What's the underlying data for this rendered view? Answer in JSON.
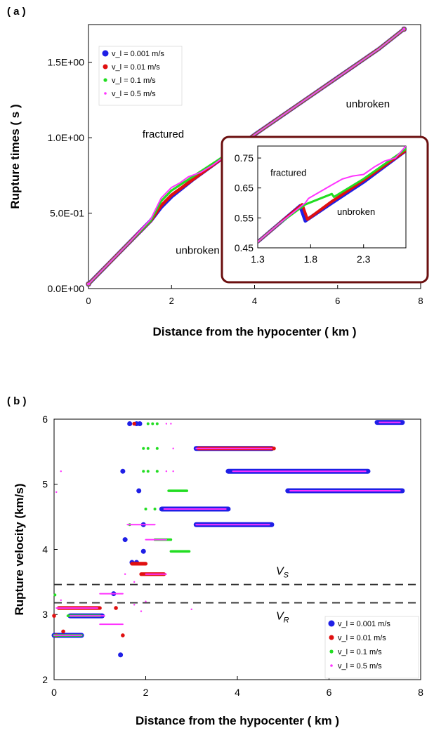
{
  "panels": {
    "a_label": "( a )",
    "b_label": "( b )"
  },
  "colors": {
    "v1": "#1f1fe6",
    "v2": "#e01010",
    "v3": "#22dd22",
    "v4": "#ff33ff",
    "inset_frame": "#6b0f0f",
    "dashes": "#333333"
  },
  "chart_data": [
    {
      "type": "scatter",
      "panel": "a",
      "xlabel": "Distance from the hypocenter ( km )",
      "ylabel": "Rupture times ( s )",
      "xlim": [
        0,
        8
      ],
      "ylim": [
        0,
        1.75
      ],
      "xticks": [
        0,
        2,
        4,
        6,
        8
      ],
      "xtick_labels": [
        "0",
        "2",
        "4",
        "6",
        "8"
      ],
      "yticks": [
        0,
        0.5,
        1.0,
        1.5
      ],
      "ytick_labels": [
        "0.0E+00",
        "5.0E-01",
        "1.0E+00",
        "1.5E+00"
      ],
      "legend_position": "top-left",
      "annotations": [
        {
          "text": "fractured",
          "x": 1.3,
          "y": 1.0
        },
        {
          "text": "unbroken",
          "x": 2.1,
          "y": 0.23
        },
        {
          "text": "unbroken",
          "x": 6.2,
          "y": 1.2
        }
      ],
      "series": [
        {
          "name": "v_l = 0.001 m/s",
          "color": "#1f1fe6",
          "x": [
            0,
            0.5,
            1.0,
            1.5,
            1.75,
            2.0,
            2.5,
            3.0,
            3.5,
            4.0,
            5.0,
            6.0,
            7.0,
            7.6
          ],
          "y": [
            0.03,
            0.17,
            0.31,
            0.45,
            0.54,
            0.61,
            0.72,
            0.82,
            0.92,
            1.02,
            1.21,
            1.4,
            1.59,
            1.72
          ]
        },
        {
          "name": "v_l = 0.01 m/s",
          "color": "#e01010",
          "x": [
            0,
            0.5,
            1.0,
            1.5,
            1.75,
            2.0,
            2.5,
            3.0,
            3.5,
            4.0,
            5.0,
            6.0,
            7.0,
            7.6
          ],
          "y": [
            0.03,
            0.17,
            0.31,
            0.45,
            0.55,
            0.62,
            0.72,
            0.82,
            0.92,
            1.02,
            1.21,
            1.4,
            1.59,
            1.72
          ]
        },
        {
          "name": "v_l = 0.1 m/s",
          "color": "#22dd22",
          "x": [
            0,
            0.5,
            1.0,
            1.5,
            1.75,
            2.0,
            2.5,
            3.0,
            3.5,
            4.0,
            5.0,
            6.0,
            7.0,
            7.6
          ],
          "y": [
            0.03,
            0.17,
            0.31,
            0.45,
            0.58,
            0.65,
            0.74,
            0.83,
            0.92,
            1.02,
            1.21,
            1.4,
            1.59,
            1.72
          ]
        },
        {
          "name": "v_l = 0.5 m/s",
          "color": "#ff33ff",
          "x": [
            0,
            0.5,
            1.0,
            1.5,
            1.75,
            2.0,
            2.2,
            2.4,
            2.7,
            3.0,
            3.5,
            4.0,
            5.0,
            6.0,
            7.0,
            7.6
          ],
          "y": [
            0.03,
            0.17,
            0.31,
            0.46,
            0.6,
            0.67,
            0.7,
            0.74,
            0.77,
            0.82,
            0.92,
            1.02,
            1.21,
            1.4,
            1.59,
            1.72
          ]
        }
      ]
    },
    {
      "type": "line",
      "panel": "a-inset",
      "xlim": [
        1.3,
        2.7
      ],
      "ylim": [
        0.45,
        0.79
      ],
      "xticks": [
        1.3,
        1.8,
        2.3
      ],
      "xtick_labels": [
        "1.3",
        "1.8",
        "2.3"
      ],
      "yticks": [
        0.45,
        0.55,
        0.65,
        0.75
      ],
      "ytick_labels": [
        "0.45",
        "0.55",
        "0.65",
        "0.75"
      ],
      "annotations": [
        {
          "text": "fractured",
          "x": 1.42,
          "y": 0.69
        },
        {
          "text": "unbroken",
          "x": 2.05,
          "y": 0.56
        }
      ],
      "series": [
        {
          "name": "v_l = 0.001 m/s",
          "color": "#1f1fe6",
          "x": [
            1.3,
            1.5,
            1.7,
            1.75,
            2.0,
            2.3,
            2.7
          ],
          "y": [
            0.47,
            0.53,
            0.59,
            0.54,
            0.6,
            0.67,
            0.775
          ]
        },
        {
          "name": "v_l = 0.01 m/s",
          "color": "#e01010",
          "x": [
            1.3,
            1.5,
            1.72,
            1.77,
            2.0,
            2.3,
            2.7
          ],
          "y": [
            0.47,
            0.53,
            0.595,
            0.545,
            0.605,
            0.675,
            0.775
          ]
        },
        {
          "name": "v_l = 0.1 m/s",
          "color": "#22dd22",
          "x": [
            1.3,
            1.5,
            1.75,
            2.0,
            2.02,
            2.3,
            2.7
          ],
          "y": [
            0.47,
            0.53,
            0.595,
            0.63,
            0.62,
            0.68,
            0.78
          ]
        },
        {
          "name": "v_l = 0.5 m/s",
          "color": "#ff33ff",
          "x": [
            1.3,
            1.5,
            1.75,
            1.78,
            2.0,
            2.1,
            2.2,
            2.3,
            2.4,
            2.5,
            2.6,
            2.7
          ],
          "y": [
            0.47,
            0.53,
            0.6,
            0.615,
            0.66,
            0.68,
            0.69,
            0.695,
            0.72,
            0.74,
            0.75,
            0.79
          ]
        }
      ]
    },
    {
      "type": "scatter",
      "panel": "b",
      "xlabel": "Distance from the hypocenter ( km )",
      "ylabel": "Rupture velocity (km/s)",
      "xlim": [
        0,
        8
      ],
      "ylim": [
        2,
        6
      ],
      "xticks": [
        0,
        2,
        4,
        6,
        8
      ],
      "xtick_labels": [
        "0",
        "2",
        "4",
        "6",
        "8"
      ],
      "yticks": [
        2,
        3,
        4,
        5,
        6
      ],
      "ytick_labels": [
        "2",
        "3",
        "4",
        "5",
        "6"
      ],
      "legend_position": "bottom-right",
      "reference_lines": [
        {
          "label": "V",
          "subscript": "S",
          "y": 3.46
        },
        {
          "label": "V",
          "subscript": "R",
          "y": 3.18
        }
      ],
      "series": [
        {
          "name": "v_l = 0.001 m/s",
          "color": "#1f1fe6",
          "segments": [
            {
              "x0": 7.05,
              "x1": 7.6,
              "y": 5.95
            },
            {
              "x0": 3.8,
              "x1": 6.85,
              "y": 5.2
            },
            {
              "x0": 5.1,
              "x1": 7.6,
              "y": 4.9
            },
            {
              "x0": 3.1,
              "x1": 4.75,
              "y": 5.55
            },
            {
              "x0": 3.1,
              "x1": 4.75,
              "y": 4.38
            },
            {
              "x0": 2.35,
              "x1": 3.8,
              "y": 4.62
            },
            {
              "x0": 0.35,
              "x1": 1.05,
              "y": 2.98
            },
            {
              "x0": 0.0,
              "x1": 0.6,
              "y": 2.68
            }
          ],
          "points": [
            [
              1.65,
              5.93
            ],
            [
              1.8,
              5.93
            ],
            [
              1.87,
              5.93
            ],
            [
              1.5,
              5.2
            ],
            [
              1.85,
              4.9
            ],
            [
              1.45,
              2.38
            ],
            [
              1.95,
              3.97
            ],
            [
              1.55,
              4.15
            ],
            [
              1.7,
              3.8
            ],
            [
              1.8,
              3.8
            ],
            [
              1.3,
              3.32
            ],
            [
              1.95,
              4.38
            ]
          ]
        },
        {
          "name": "v_l = 0.01 m/s",
          "color": "#e01010",
          "segments": [
            {
              "x0": 3.15,
              "x1": 4.8,
              "y": 5.55
            },
            {
              "x0": 1.9,
              "x1": 2.4,
              "y": 3.62
            },
            {
              "x0": 1.7,
              "x1": 2.0,
              "y": 3.78
            },
            {
              "x0": 0.1,
              "x1": 1.0,
              "y": 3.1
            }
          ],
          "points": [
            [
              1.75,
              5.93
            ],
            [
              0.0,
              2.98
            ],
            [
              0.2,
              2.74
            ],
            [
              1.5,
              2.68
            ],
            [
              0.05,
              2.68
            ],
            [
              1.35,
              3.1
            ]
          ]
        },
        {
          "name": "v_l = 0.1 m/s",
          "color": "#22dd22",
          "segments": [
            {
              "x0": 2.5,
              "x1": 2.9,
              "y": 4.9
            },
            {
              "x0": 2.55,
              "x1": 2.95,
              "y": 3.97
            },
            {
              "x0": 2.2,
              "x1": 2.55,
              "y": 4.15
            },
            {
              "x0": 0.0,
              "x1": 0.6,
              "y": 2.68
            },
            {
              "x0": 0.3,
              "x1": 1.0,
              "y": 2.98
            }
          ],
          "points": [
            [
              2.05,
              5.93
            ],
            [
              2.15,
              5.93
            ],
            [
              2.25,
              5.93
            ],
            [
              1.95,
              5.55
            ],
            [
              2.05,
              5.55
            ],
            [
              2.25,
              5.55
            ],
            [
              1.95,
              5.2
            ],
            [
              2.05,
              5.2
            ],
            [
              2.25,
              5.2
            ],
            [
              2.0,
              4.62
            ],
            [
              2.2,
              4.62
            ],
            [
              1.65,
              4.38
            ],
            [
              0.02,
              3.3
            ]
          ]
        },
        {
          "name": "v_l = 0.5 m/s",
          "color": "#ff33ff",
          "segments": [
            {
              "x0": 3.1,
              "x1": 4.75,
              "y": 5.55
            },
            {
              "x0": 3.9,
              "x1": 6.8,
              "y": 5.2
            },
            {
              "x0": 5.15,
              "x1": 7.55,
              "y": 4.9
            },
            {
              "x0": 7.1,
              "x1": 7.55,
              "y": 5.95
            },
            {
              "x0": 3.1,
              "x1": 4.7,
              "y": 4.38
            },
            {
              "x0": 2.4,
              "x1": 3.75,
              "y": 4.62
            },
            {
              "x0": 2.0,
              "x1": 2.45,
              "y": 3.62
            },
            {
              "x0": 2.0,
              "x1": 2.45,
              "y": 4.15
            },
            {
              "x0": 1.6,
              "x1": 2.2,
              "y": 4.38
            },
            {
              "x0": 0.35,
              "x1": 1.1,
              "y": 2.98
            },
            {
              "x0": 0.0,
              "x1": 0.6,
              "y": 2.68
            },
            {
              "x0": 0.05,
              "x1": 0.95,
              "y": 3.1
            },
            {
              "x0": 1.0,
              "x1": 1.5,
              "y": 2.85
            },
            {
              "x0": 1.0,
              "x1": 1.5,
              "y": 3.32
            }
          ],
          "points": [
            [
              0.15,
              5.2
            ],
            [
              0.05,
              4.88
            ],
            [
              2.45,
              5.93
            ],
            [
              2.55,
              5.93
            ],
            [
              2.6,
              5.55
            ],
            [
              2.6,
              5.2
            ],
            [
              2.45,
              5.2
            ],
            [
              3.0,
              3.08
            ],
            [
              2.0,
              3.2
            ],
            [
              1.9,
              3.05
            ],
            [
              0.15,
              3.22
            ],
            [
              1.75,
              3.5
            ],
            [
              1.55,
              3.62
            ],
            [
              1.75,
              3.15
            ]
          ]
        }
      ]
    }
  ]
}
